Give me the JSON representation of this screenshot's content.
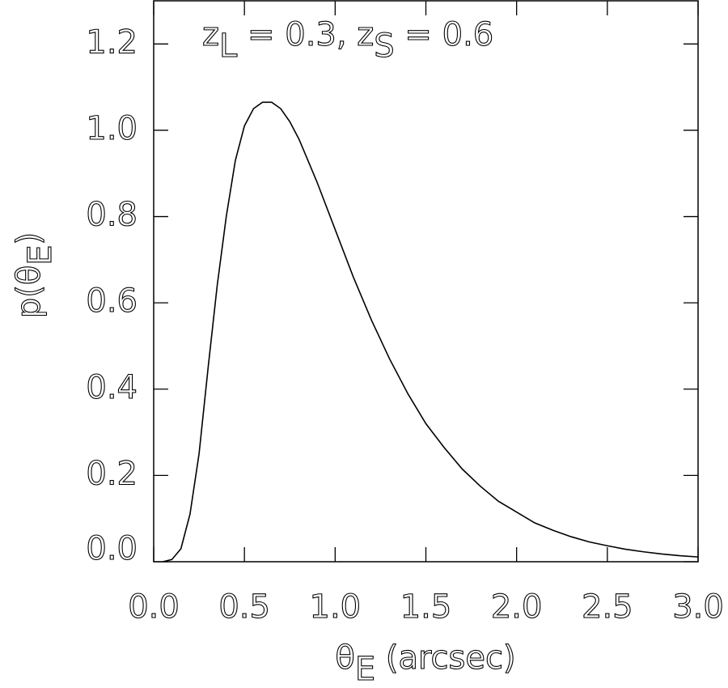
{
  "chart_data": {
    "type": "line",
    "annotation": [
      "z",
      "L",
      " = 0.3, z",
      "S",
      " = 0.6"
    ],
    "xlabel": [
      "θ",
      "E",
      "  (arcsec)"
    ],
    "ylabel": [
      "p(θ",
      "E",
      ")"
    ],
    "x": [
      0.05,
      0.1,
      0.15,
      0.2,
      0.25,
      0.3,
      0.35,
      0.4,
      0.45,
      0.5,
      0.55,
      0.6,
      0.65,
      0.7,
      0.75,
      0.8,
      0.9,
      1.0,
      1.1,
      1.2,
      1.3,
      1.4,
      1.5,
      1.6,
      1.7,
      1.8,
      1.9,
      2.0,
      2.1,
      2.2,
      2.3,
      2.4,
      2.5,
      2.6,
      2.7,
      2.8,
      2.9,
      3.0
    ],
    "series": [
      {
        "color": "#000000",
        "values": [
          0,
          0.005,
          0.03,
          0.11,
          0.25,
          0.45,
          0.64,
          0.8,
          0.93,
          1.01,
          1.05,
          1.065,
          1.065,
          1.05,
          1.02,
          0.98,
          0.88,
          0.77,
          0.66,
          0.56,
          0.47,
          0.39,
          0.32,
          0.265,
          0.215,
          0.175,
          0.14,
          0.115,
          0.09,
          0.073,
          0.058,
          0.046,
          0.037,
          0.029,
          0.023,
          0.018,
          0.014,
          0.011
        ]
      }
    ],
    "xlim": [
      0,
      3
    ],
    "ylim": [
      0,
      1.3
    ],
    "xticks": [
      {
        "value": 0,
        "label": "0.0"
      },
      0.5,
      {
        "value": 1,
        "label": "1.0"
      },
      1.5,
      {
        "value": 2,
        "label": "2.0"
      },
      2.5,
      {
        "value": 3,
        "label": "3.0"
      }
    ],
    "yticks": [
      {
        "value": 0,
        "label": "0.0"
      },
      0.2,
      0.4,
      0.6,
      0.8,
      {
        "value": 1,
        "label": "1.0"
      },
      1.2
    ],
    "grid": false
  }
}
